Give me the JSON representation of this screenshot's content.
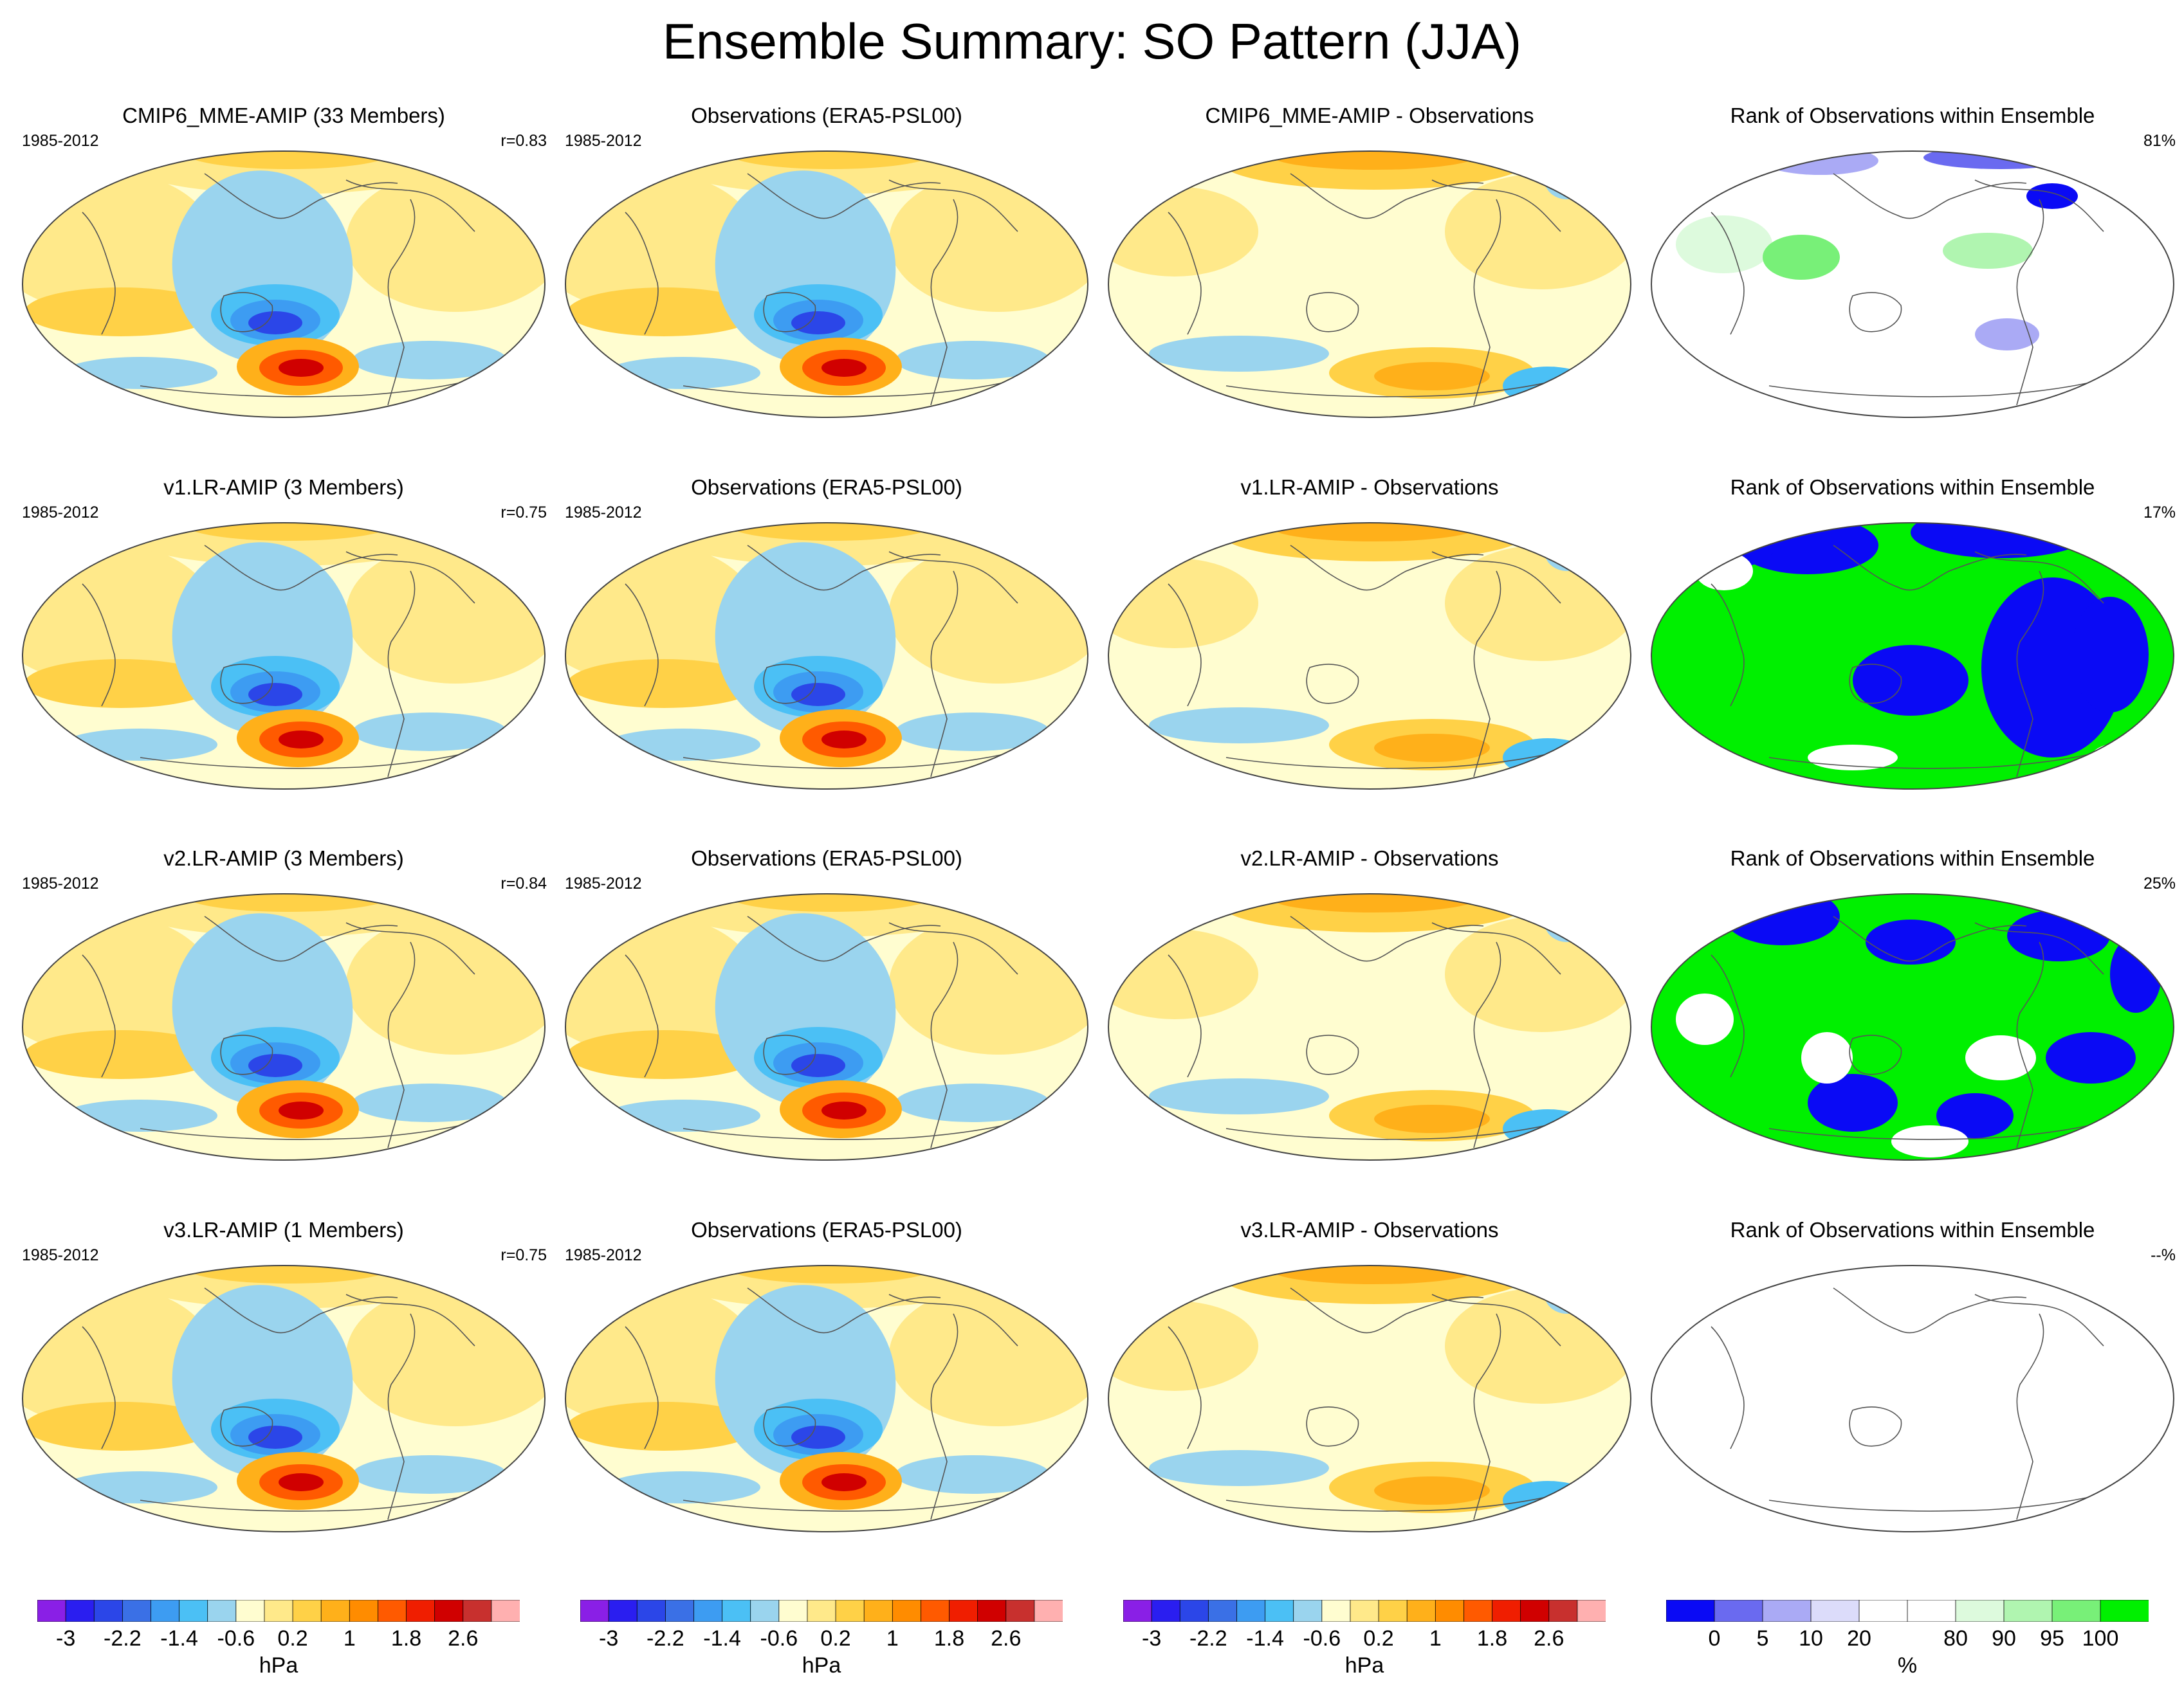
{
  "title": "Ensemble Summary: SO Pattern (JJA)",
  "period": "1985-2012",
  "rows": [
    {
      "model_title": "CMIP6_MME-AMIP (33 Members)",
      "r": "r=0.83",
      "obs_title": "Observations (ERA5-PSL00)",
      "diff_title": "CMIP6_MME-AMIP - Observations",
      "rank_title": "Rank of Observations within Ensemble",
      "rank_pct": "81%"
    },
    {
      "model_title": "v1.LR-AMIP (3 Members)",
      "r": "r=0.75",
      "obs_title": "Observations (ERA5-PSL00)",
      "diff_title": "v1.LR-AMIP - Observations",
      "rank_title": "Rank of Observations within Ensemble",
      "rank_pct": "17%"
    },
    {
      "model_title": "v2.LR-AMIP (3 Members)",
      "r": "r=0.84",
      "obs_title": "Observations (ERA5-PSL00)",
      "diff_title": "v2.LR-AMIP - Observations",
      "rank_title": "Rank of Observations within Ensemble",
      "rank_pct": "25%"
    },
    {
      "model_title": "v3.LR-AMIP (1 Members)",
      "r": "r=0.75",
      "obs_title": "Observations (ERA5-PSL00)",
      "diff_title": "v3.LR-AMIP - Observations",
      "rank_title": "Rank of Observations within Ensemble",
      "rank_pct": "--%"
    }
  ],
  "psl_colorbar": {
    "unit": "hPa",
    "colors": [
      "#8a1fe6",
      "#2a1ef0",
      "#2b46e8",
      "#3a70e6",
      "#3d9cf2",
      "#4bc0f5",
      "#9ad4ee",
      "#fffdd0",
      "#ffe98a",
      "#ffd147",
      "#ffb01a",
      "#ff8c00",
      "#ff5a00",
      "#f01e00",
      "#d00000",
      "#c8302e",
      "#ffb0b0"
    ],
    "labels": [
      "-3",
      "-2.2",
      "-1.4",
      "-0.6",
      "0.2",
      "1",
      "1.8",
      "2.6"
    ]
  },
  "rank_colorbar": {
    "unit": "%",
    "colors": [
      "#0a0af5",
      "#6a6af0",
      "#aaaaf5",
      "#dcdcfa",
      "#ffffff",
      "#ffffff",
      "#ddfadd",
      "#b0f5b0",
      "#78f078",
      "#00f000"
    ],
    "labels": [
      "0",
      "5",
      "10",
      "20",
      "80",
      "90",
      "95",
      "100"
    ]
  },
  "colors": {
    "ocean_pale": "#fffdd0",
    "positive": "#ffe98a",
    "negative": "#9ad4ee",
    "rank_low": "#0a0af5",
    "rank_high": "#00f000"
  }
}
